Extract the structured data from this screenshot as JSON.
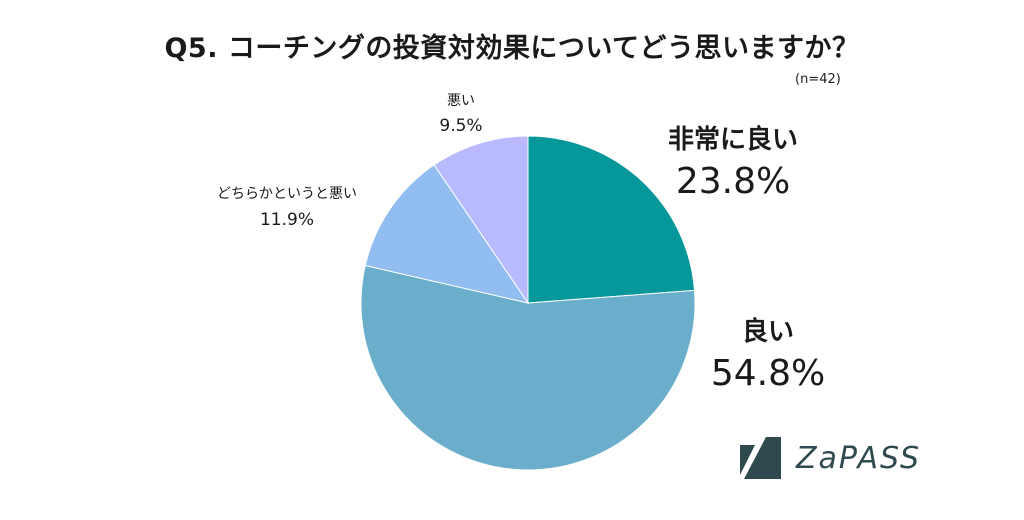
{
  "title": "Q5. コーチングの投資対効果についてどう思いますか？",
  "subtitle": "(n=42)",
  "logo_text": "ZaPASS",
  "chart_data": {
    "type": "pie",
    "title": "Q5. コーチングの投資対効果についてどう思いますか？",
    "start": "12 o'clock",
    "direction": "clockwise",
    "slices": [
      {
        "label": "非常に良い",
        "value": 23.8,
        "display": "23.8%",
        "color": "#06979b",
        "label_style": "large"
      },
      {
        "label": "良い",
        "value": 54.8,
        "display": "54.8%",
        "color": "#6aaecb",
        "label_style": "large"
      },
      {
        "label": "どちらかというと悪い",
        "value": 11.9,
        "display": "11.9%",
        "color": "#92bdf0",
        "label_style": "small"
      },
      {
        "label": "悪い",
        "value": 9.5,
        "display": "9.5%",
        "color": "#b8b9ff",
        "label_style": "small"
      }
    ]
  }
}
